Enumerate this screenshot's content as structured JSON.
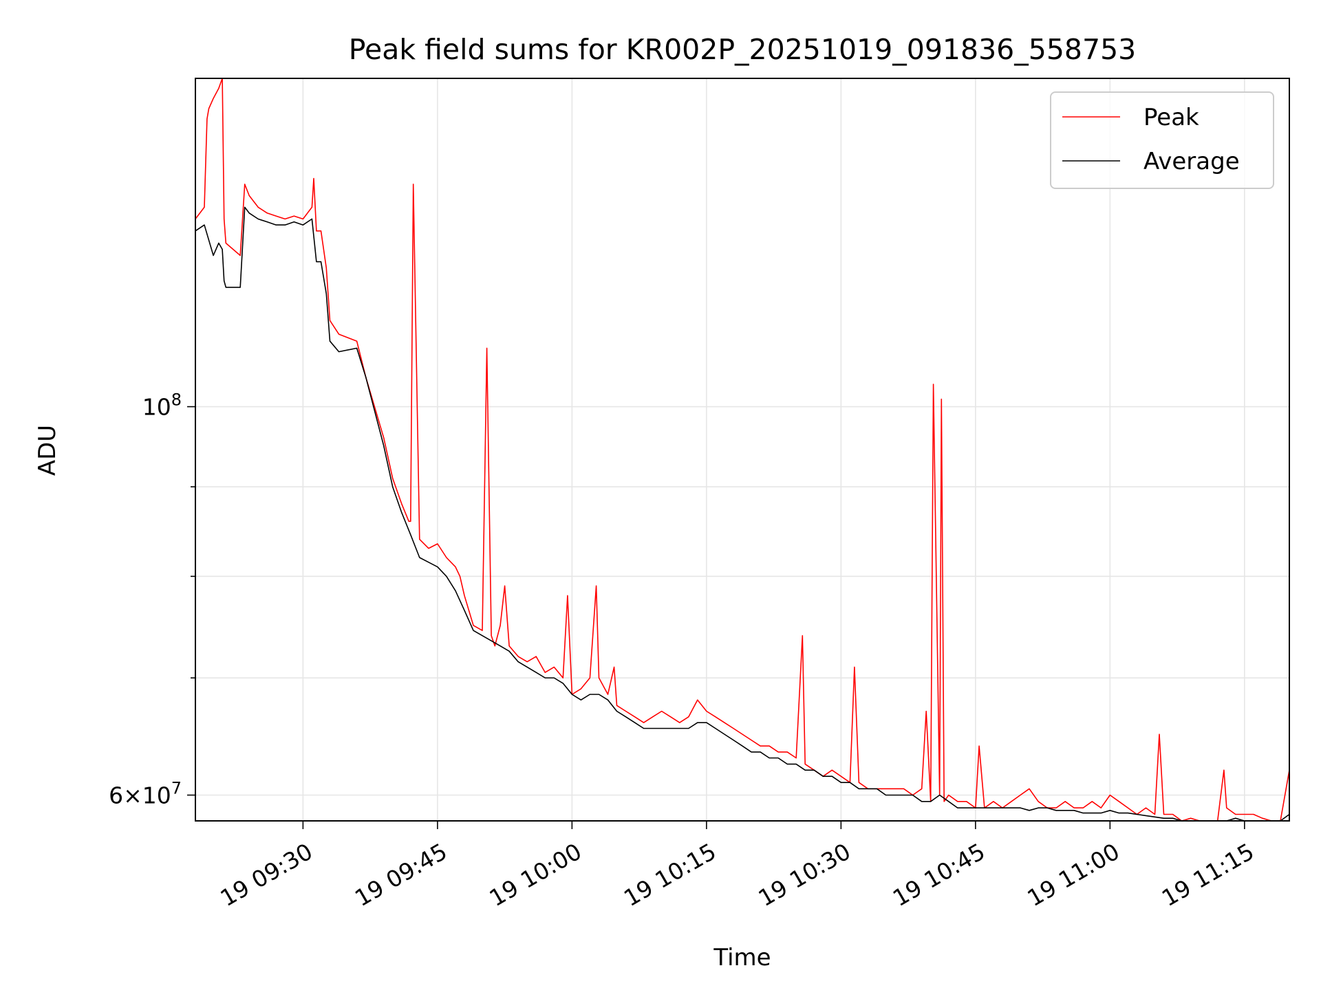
{
  "chart_data": {
    "type": "line",
    "title": "Peak field sums for KR002P_20251019_091836_558753",
    "xlabel": "Time",
    "ylabel": "ADU",
    "x_unit": "minutes since 19 09:18",
    "xlim": [
      0,
      122
    ],
    "ylim": [
      58000000,
      154000000
    ],
    "yscale": "log",
    "grid": true,
    "legend_position": "top-right",
    "x_ticks": [
      {
        "at": 12,
        "label": "19 09:30"
      },
      {
        "at": 27,
        "label": "19 09:45"
      },
      {
        "at": 42,
        "label": "19 10:00"
      },
      {
        "at": 57,
        "label": "19 10:15"
      },
      {
        "at": 72,
        "label": "19 10:30"
      },
      {
        "at": 87,
        "label": "19 10:45"
      },
      {
        "at": 102,
        "label": "19 11:00"
      },
      {
        "at": 117,
        "label": "19 11:15"
      }
    ],
    "y_major_ticks": [
      {
        "at": 100000000,
        "base": "10",
        "exp": "8"
      },
      {
        "at": 60000000,
        "mant": "6",
        "exp": "7"
      }
    ],
    "y_minor_ticks": [
      70000000,
      80000000,
      90000000
    ],
    "series": [
      {
        "name": "Peak",
        "color": "#ff0000",
        "x": [
          0,
          1,
          1.3,
          1.5,
          2,
          2.6,
          3,
          3.2,
          3.4,
          5,
          5.5,
          6,
          7,
          8,
          9,
          10,
          11,
          12,
          13,
          13.2,
          13.5,
          14,
          14.6,
          15,
          16,
          18,
          19,
          21,
          22,
          23,
          23.8,
          24,
          24.3,
          25,
          26,
          27,
          28,
          29,
          29.5,
          30,
          31,
          32,
          32.5,
          33,
          33.4,
          34,
          34.5,
          35,
          36,
          37,
          38,
          39,
          40,
          41,
          41.5,
          42,
          43,
          44,
          44.7,
          45,
          46,
          46.7,
          47,
          48,
          49,
          50,
          51,
          52,
          53,
          54,
          55,
          56,
          57,
          58,
          59,
          60,
          61,
          62,
          63,
          64,
          65,
          66,
          67,
          67.7,
          68,
          69,
          70,
          71,
          72,
          73,
          73.5,
          74,
          75,
          76,
          77,
          78,
          79,
          80,
          81,
          81.5,
          82,
          82.3,
          83,
          83.2,
          83.5,
          84,
          85,
          86,
          87,
          87.4,
          88,
          89,
          90,
          91,
          92,
          93,
          94,
          95,
          96,
          97,
          98,
          99,
          100,
          101,
          102,
          103,
          104,
          105,
          106,
          107,
          107.5,
          108,
          109,
          110,
          111,
          112,
          113,
          114,
          114.7,
          115,
          116,
          117,
          118,
          119,
          120,
          121,
          122
        ],
        "values": [
          128000000,
          130000000,
          146000000,
          148000000,
          150000000,
          152000000,
          154000000,
          128000000,
          124000000,
          122000000,
          134000000,
          132000000,
          130000000,
          129000000,
          128500000,
          128000000,
          128500000,
          128000000,
          130000000,
          135000000,
          126000000,
          126000000,
          120000000,
          112000000,
          110000000,
          109000000,
          104000000,
          96000000,
          91000000,
          88000000,
          86000000,
          86000000,
          134000000,
          84000000,
          83000000,
          83500000,
          82000000,
          81000000,
          80000000,
          78000000,
          75000000,
          74500000,
          108000000,
          74000000,
          73000000,
          75000000,
          79000000,
          73000000,
          72000000,
          71500000,
          72000000,
          70500000,
          71000000,
          70000000,
          78000000,
          68500000,
          69000000,
          70000000,
          79000000,
          70000000,
          68500000,
          71000000,
          67500000,
          67000000,
          66500000,
          66000000,
          66500000,
          67000000,
          66500000,
          66000000,
          66500000,
          68000000,
          67000000,
          66500000,
          66000000,
          65500000,
          65000000,
          64500000,
          64000000,
          64000000,
          63500000,
          63500000,
          63000000,
          74000000,
          62500000,
          62000000,
          61500000,
          62000000,
          61500000,
          61000000,
          71000000,
          61000000,
          60500000,
          60500000,
          60500000,
          60500000,
          60500000,
          60000000,
          60500000,
          67000000,
          59500000,
          103000000,
          60000000,
          101000000,
          59500000,
          60000000,
          59500000,
          59500000,
          59000000,
          64000000,
          59000000,
          59500000,
          59000000,
          59500000,
          60000000,
          60500000,
          59500000,
          59000000,
          59000000,
          59500000,
          59000000,
          59000000,
          59500000,
          59000000,
          60000000,
          59500000,
          59000000,
          58500000,
          59000000,
          58500000,
          65000000,
          58500000,
          58500000,
          58000000,
          58200000,
          58000000,
          58000000,
          58000000,
          62000000,
          59000000,
          58500000,
          58500000,
          58500000,
          58200000,
          58000000,
          58000000,
          62000000
        ]
      },
      {
        "name": "Average",
        "color": "#000000",
        "x": [
          0,
          1,
          2,
          2.6,
          3,
          3.2,
          3.4,
          5,
          5.5,
          6,
          7,
          8,
          9,
          10,
          11,
          12,
          13,
          13.5,
          14,
          14.6,
          15,
          16,
          18,
          19,
          21,
          22,
          23,
          24,
          25,
          26,
          27,
          28,
          29,
          30,
          31,
          32,
          33,
          34,
          35,
          36,
          37,
          38,
          39,
          40,
          41,
          42,
          43,
          44,
          45,
          46,
          47,
          48,
          49,
          50,
          51,
          52,
          53,
          54,
          55,
          56,
          57,
          58,
          59,
          60,
          61,
          62,
          63,
          64,
          65,
          66,
          67,
          68,
          69,
          70,
          71,
          72,
          73,
          74,
          75,
          76,
          77,
          78,
          79,
          80,
          81,
          82,
          83,
          84,
          85,
          86,
          87,
          88,
          89,
          90,
          91,
          92,
          93,
          94,
          95,
          96,
          97,
          98,
          99,
          100,
          101,
          102,
          103,
          104,
          105,
          106,
          107,
          108,
          109,
          110,
          111,
          112,
          113,
          114,
          115,
          116,
          117,
          118,
          119,
          120,
          121,
          122
        ],
        "values": [
          126000000,
          127000000,
          122000000,
          124000000,
          123000000,
          118000000,
          117000000,
          117000000,
          130000000,
          129000000,
          128000000,
          127500000,
          127000000,
          127000000,
          127500000,
          127000000,
          128000000,
          121000000,
          121000000,
          116000000,
          109000000,
          107500000,
          108000000,
          104000000,
          95000000,
          90000000,
          87000000,
          84500000,
          82000000,
          81500000,
          81000000,
          80000000,
          78500000,
          76500000,
          74500000,
          74000000,
          73500000,
          73000000,
          72500000,
          71500000,
          71000000,
          70500000,
          70000000,
          70000000,
          69500000,
          68500000,
          68000000,
          68500000,
          68500000,
          68000000,
          67000000,
          66500000,
          66000000,
          65500000,
          65500000,
          65500000,
          65500000,
          65500000,
          65500000,
          66000000,
          66000000,
          65500000,
          65000000,
          64500000,
          64000000,
          63500000,
          63500000,
          63000000,
          63000000,
          62500000,
          62500000,
          62000000,
          62000000,
          61500000,
          61500000,
          61000000,
          61000000,
          60500000,
          60500000,
          60500000,
          60000000,
          60000000,
          60000000,
          60000000,
          59500000,
          59500000,
          60000000,
          59500000,
          59000000,
          59000000,
          59000000,
          59000000,
          59000000,
          59000000,
          59000000,
          59000000,
          58800000,
          59000000,
          59000000,
          58800000,
          58800000,
          58800000,
          58600000,
          58600000,
          58600000,
          58800000,
          58600000,
          58600000,
          58500000,
          58400000,
          58300000,
          58200000,
          58200000,
          58000000,
          58000000,
          58000000,
          58000000,
          58000000,
          58000000,
          58200000,
          58000000,
          58000000,
          58000000,
          58000000,
          58000000,
          58500000
        ]
      }
    ]
  }
}
